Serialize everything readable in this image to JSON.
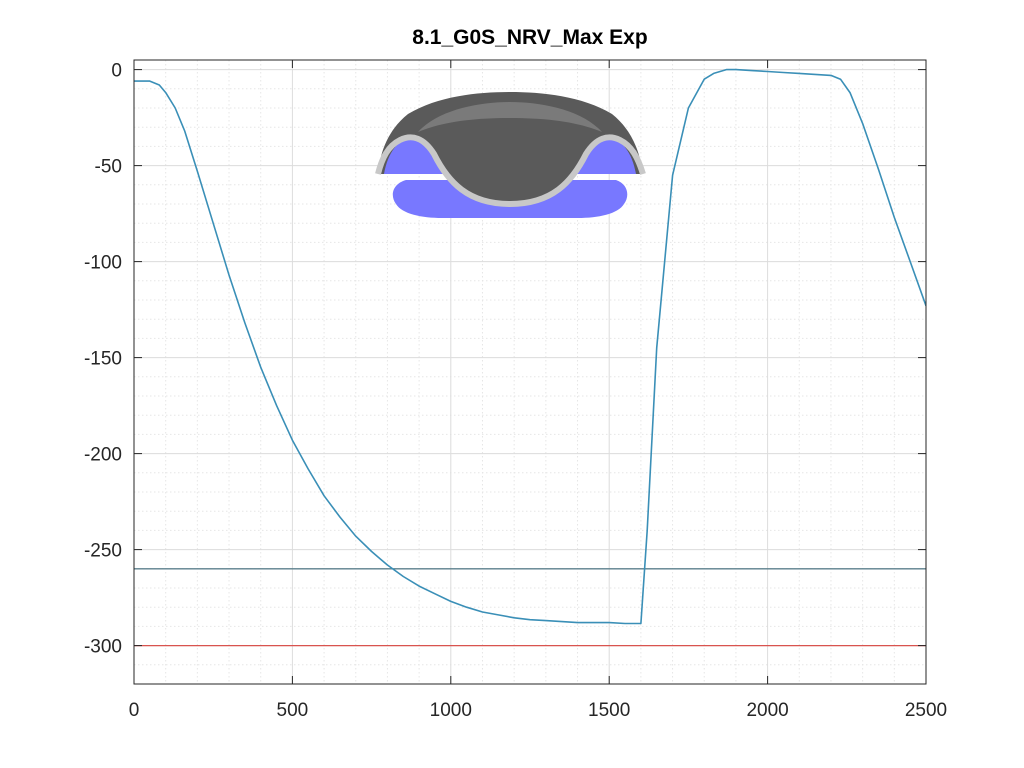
{
  "chart_data": {
    "type": "line",
    "title": "8.1_G0S_NRV_Max Exp",
    "xlabel": "",
    "ylabel": "",
    "xlim": [
      0,
      2500
    ],
    "ylim": [
      -320,
      5
    ],
    "grid": true,
    "minor_grid": true,
    "x_ticks": [
      0,
      500,
      1000,
      1500,
      2000,
      2500
    ],
    "y_ticks": [
      0,
      -50,
      -100,
      -150,
      -200,
      -250,
      -300
    ],
    "x_tick_labels": [
      "0",
      "500",
      "1000",
      "1500",
      "2000",
      "2500"
    ],
    "y_tick_labels": [
      "0",
      "-50",
      "-100",
      "-150",
      "-200",
      "-250",
      "-300"
    ],
    "series": [
      {
        "color": "#3a8fb7",
        "x": [
          0,
          50,
          80,
          100,
          130,
          160,
          200,
          250,
          300,
          350,
          400,
          450,
          500,
          550,
          600,
          650,
          700,
          750,
          800,
          850,
          900,
          950,
          1000,
          1050,
          1100,
          1150,
          1200,
          1250,
          1300,
          1350,
          1400,
          1450,
          1500,
          1550,
          1600,
          1620,
          1650,
          1700,
          1750,
          1800,
          1830,
          1870,
          1900,
          1950,
          2000,
          2050,
          2100,
          2150,
          2200,
          2230,
          2260,
          2300,
          2350,
          2400,
          2450,
          2500
        ],
        "y": [
          -6,
          -6,
          -8,
          -12,
          -20,
          -32,
          -53,
          -80,
          -107,
          -132,
          -155,
          -175,
          -193,
          -208,
          -222,
          -233,
          -243,
          -251,
          -258,
          -264,
          -269,
          -273,
          -277,
          -280,
          -282.5,
          -284,
          -285.5,
          -286.5,
          -287,
          -287.5,
          -288,
          -288,
          -288,
          -288.5,
          -288.5,
          -240,
          -145,
          -55,
          -20,
          -5,
          -2,
          0,
          0,
          -0.5,
          -1,
          -1.5,
          -2,
          -2.5,
          -3,
          -5,
          -12,
          -28,
          -52,
          -77,
          -100,
          -123
        ]
      }
    ],
    "reference_lines": [
      {
        "y": -260,
        "color": "#5b7f8c"
      },
      {
        "y": -300,
        "color": "#d9534f"
      }
    ]
  },
  "inset": {
    "icon": "heart-valve-cross-section-image",
    "shell_color": "#5a5a5a",
    "rim_color": "#c8c8c8",
    "base_color": "#7878ff"
  }
}
